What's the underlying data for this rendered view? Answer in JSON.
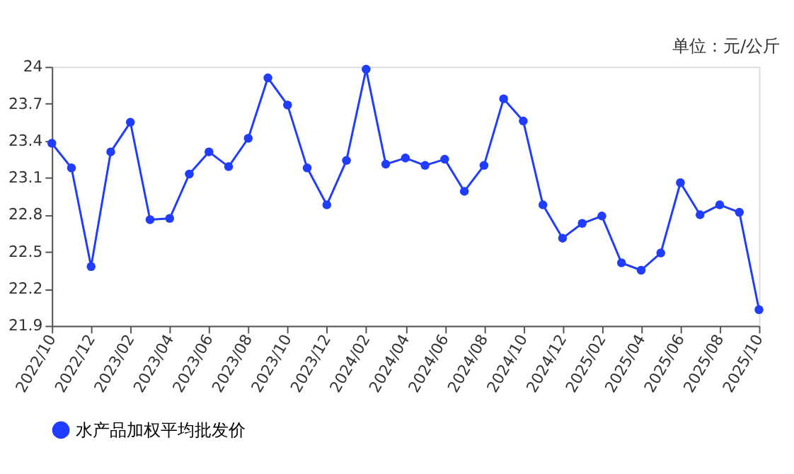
{
  "chart_data": {
    "type": "line",
    "annotations": [
      "单位：元/公斤"
    ],
    "categories": [
      "2022/10",
      null,
      "2022/12",
      null,
      "2023/02",
      null,
      "2023/04",
      null,
      "2023/06",
      null,
      "2023/08",
      null,
      "2023/10",
      null,
      "2023/12",
      null,
      "2024/02",
      null,
      "2024/04",
      null,
      "2024/06",
      null,
      "2024/08",
      null,
      "2024/10",
      null,
      "2024/12",
      null,
      "2025/02",
      null,
      "2025/04",
      null,
      "2025/06",
      null,
      "2025/08",
      null,
      "2025/10"
    ],
    "series": [
      {
        "name": "水产品加权平均批发价",
        "color": "#1f3cff",
        "values": [
          23.38,
          23.18,
          22.38,
          23.31,
          23.55,
          22.76,
          22.77,
          23.13,
          23.31,
          23.19,
          23.42,
          23.91,
          23.69,
          23.18,
          22.88,
          23.24,
          23.98,
          23.21,
          23.26,
          23.2,
          23.25,
          22.99,
          23.2,
          23.74,
          23.56,
          22.88,
          22.61,
          22.73,
          22.79,
          22.41,
          22.35,
          22.49,
          23.06,
          22.8,
          22.88,
          22.82,
          22.03
        ]
      }
    ],
    "ylim": [
      21.9,
      24
    ],
    "yticks": [
      21.9,
      22.2,
      22.5,
      22.8,
      23.1,
      23.4,
      23.7,
      24
    ],
    "grid": false,
    "legend": "bottom",
    "marker": "circle",
    "line_style": "solid"
  }
}
